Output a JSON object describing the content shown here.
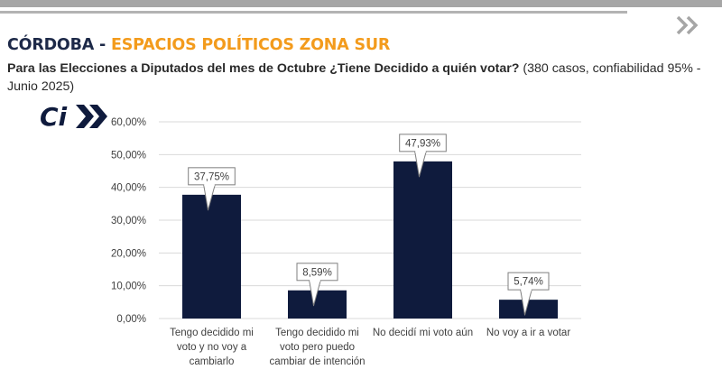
{
  "header": {
    "title_main": "CÓRDOBA - ",
    "title_accent": "ESPACIOS POLÍTICOS ZONA SUR",
    "question": "Para las Elecciones a Diputados del mes de Octubre ¿Tiene Decidido a quién votar?",
    "note": " (380 casos, confiabilidad 95% - Junio 2025)",
    "nav_icon": "double-chevron-right-icon"
  },
  "logo": {
    "text": "Ci",
    "icon": "double-chevron-right-icon"
  },
  "colors": {
    "bar": "#0f1b3d",
    "accent": "#f39b1c",
    "title": "#1d2948",
    "grid": "#d9d9d9",
    "label_text": "#404040"
  },
  "chart_data": {
    "type": "bar",
    "categories": [
      "Tengo decidido mi voto y no voy a cambiarlo",
      "Tengo decidido mi voto pero puedo cambiar de intención",
      "No decidí mi voto aún",
      "No voy a ir a votar"
    ],
    "category_lines": [
      [
        "Tengo decidido mi",
        "voto y no voy a",
        "cambiarlo"
      ],
      [
        "Tengo decidido mi",
        "voto pero puedo",
        "cambiar de intención"
      ],
      [
        "No decidí mi voto aún"
      ],
      [
        "No voy a ir a votar"
      ]
    ],
    "values": [
      37.75,
      8.59,
      47.93,
      5.74
    ],
    "data_labels": [
      "37,75%",
      "8,59%",
      "47,93%",
      "5,74%"
    ],
    "ylim": [
      0,
      60
    ],
    "yticks": [
      0,
      10,
      20,
      30,
      40,
      50,
      60
    ],
    "ytick_labels": [
      "0,00%",
      "10,00%",
      "20,00%",
      "30,00%",
      "40,00%",
      "50,00%",
      "60,00%"
    ],
    "grid": true,
    "legend": false,
    "title": "",
    "xlabel": "",
    "ylabel": ""
  }
}
